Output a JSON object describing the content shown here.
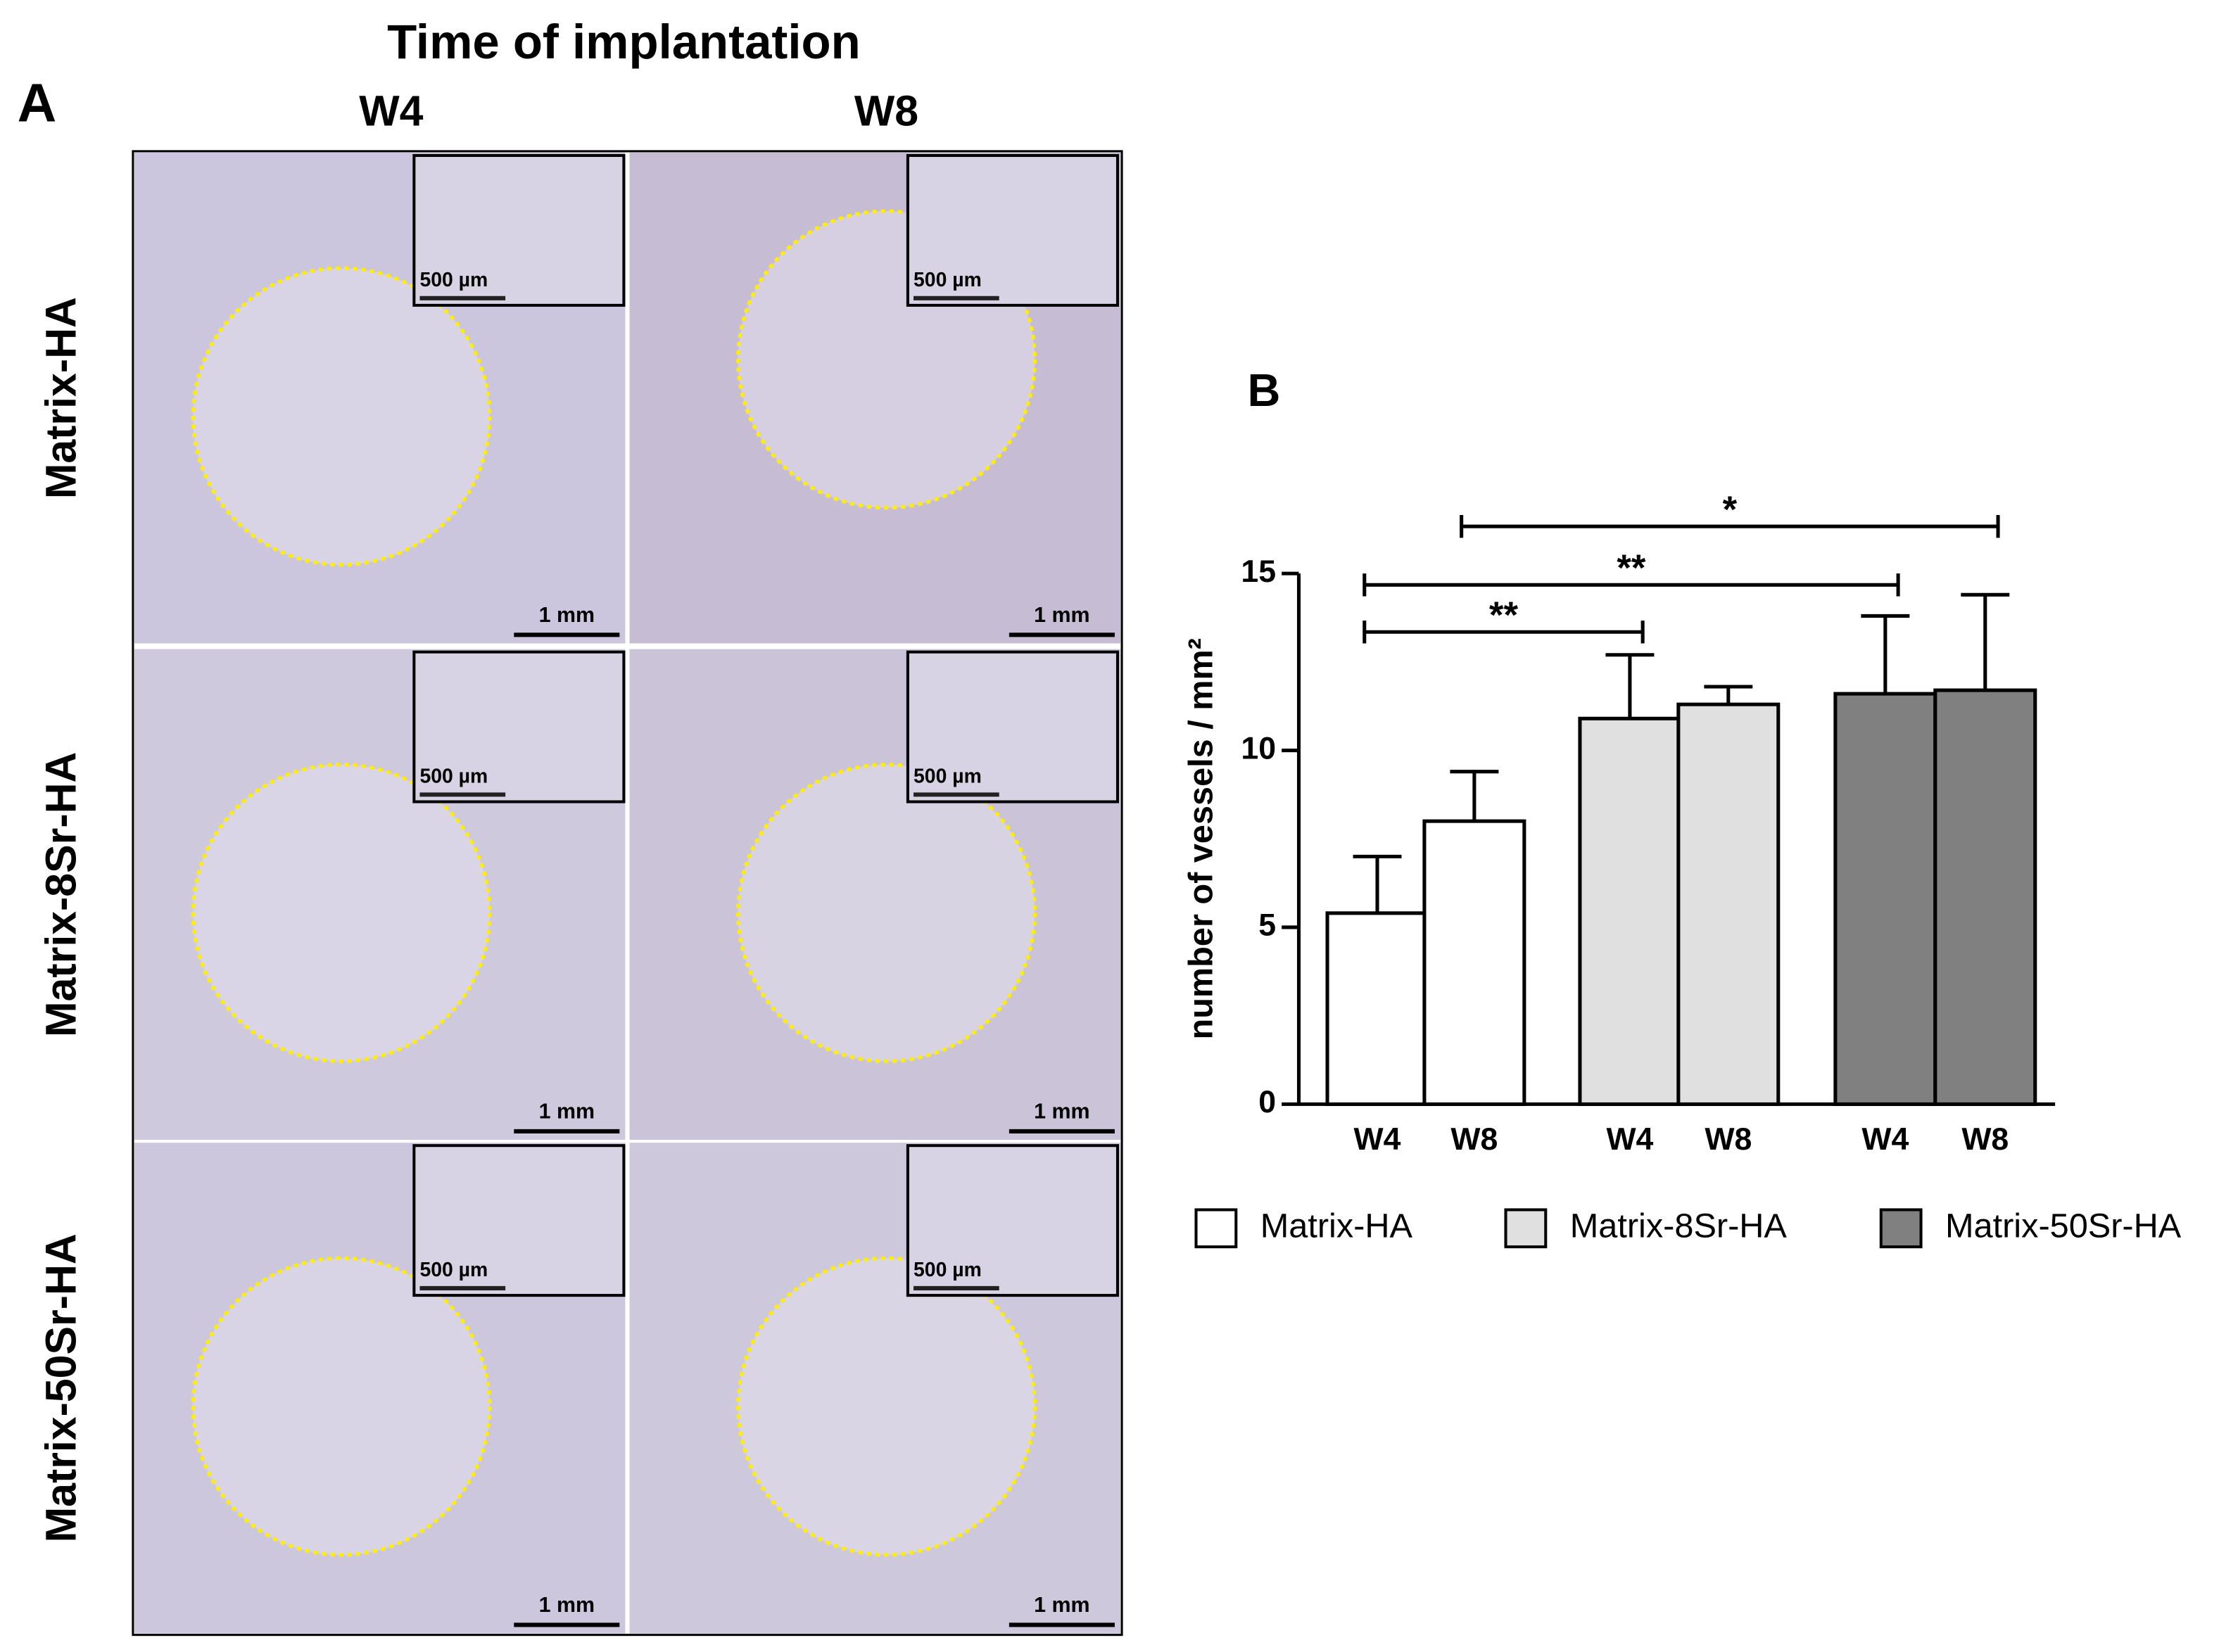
{
  "panel_a": {
    "label": "A",
    "title": "Time of implantation",
    "columns": [
      "W4",
      "W8"
    ],
    "rows": [
      "Matrix-HA",
      "Matrix-8Sr-HA",
      "Matrix-50Sr-HA"
    ],
    "scale_bar": "1 mm",
    "inset_scale_bar": "500 µm"
  },
  "chart_data": {
    "type": "bar",
    "panel_label": "B",
    "y_label": "number of vessels / mm²",
    "categories": [
      "W4",
      "W8",
      "W4",
      "W8",
      "W4",
      "W8"
    ],
    "series": [
      {
        "name": "Matrix-HA",
        "color": "#ffffff",
        "values": [
          5.4,
          8.0,
          null,
          null,
          null,
          null
        ],
        "errors": [
          1.6,
          1.4,
          null,
          null,
          null,
          null
        ]
      },
      {
        "name": "Matrix-8Sr-HA",
        "color": "#e0e0e0",
        "values": [
          null,
          null,
          10.9,
          11.3,
          null,
          null
        ],
        "errors": [
          null,
          null,
          1.8,
          0.5,
          null,
          null
        ]
      },
      {
        "name": "Matrix-50Sr-HA",
        "color": "#808080",
        "values": [
          null,
          null,
          null,
          null,
          11.6,
          11.7
        ],
        "errors": [
          null,
          null,
          null,
          null,
          2.2,
          2.7
        ]
      }
    ],
    "ylim": [
      0,
      15
    ],
    "yticks": [
      0,
      5,
      10,
      15
    ],
    "significance": [
      {
        "label": "**",
        "from": 0,
        "to": 2
      },
      {
        "label": "**",
        "from": 0,
        "to": 4
      },
      {
        "label": "*",
        "from": 1,
        "to": 5
      }
    ]
  }
}
